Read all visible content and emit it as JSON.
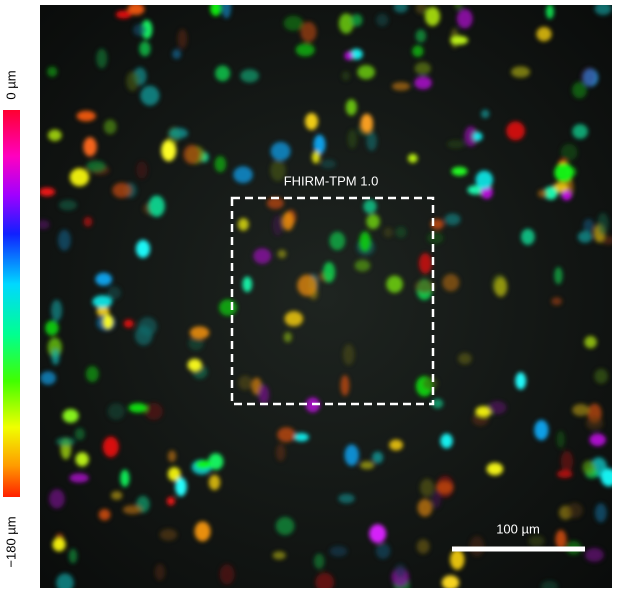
{
  "colorbar": {
    "top_label": "0 µm",
    "bottom_label": "−180 µm"
  },
  "image": {
    "roi_label": "FHIRM-TPM 1.0",
    "scale_bar_label": "100 µm"
  }
}
